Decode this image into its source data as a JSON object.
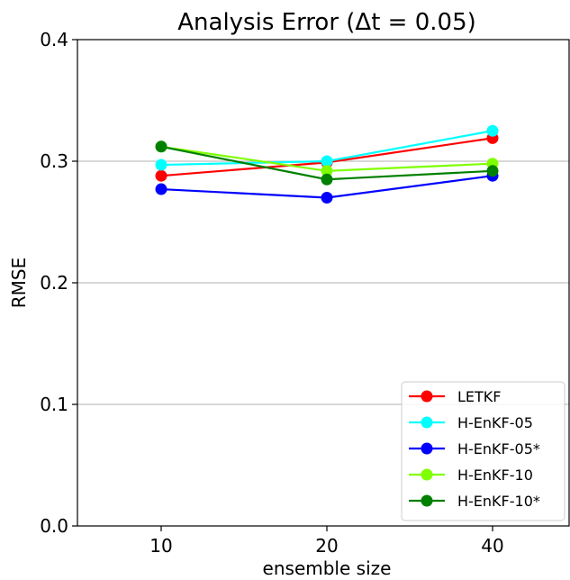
{
  "chart_data": {
    "type": "line",
    "title": "Analysis Error (Δt = 0.05)",
    "xlabel": "ensemble size",
    "ylabel": "RMSE",
    "categories": [
      "10",
      "20",
      "40"
    ],
    "ylim": [
      0.0,
      0.4
    ],
    "yticks": [
      "0.0",
      "0.1",
      "0.2",
      "0.3",
      "0.4"
    ],
    "grid": "horizontal",
    "legend_position": "lower-right",
    "series": [
      {
        "name": "LETKF",
        "color": "#ff0000",
        "values": [
          0.288,
          0.299,
          0.319
        ]
      },
      {
        "name": "H-EnKF-05",
        "color": "#00ffff",
        "values": [
          0.297,
          0.3,
          0.325
        ]
      },
      {
        "name": "H-EnKF-05*",
        "color": "#0000ff",
        "values": [
          0.277,
          0.27,
          0.288
        ]
      },
      {
        "name": "H-EnKF-10",
        "color": "#7fff00",
        "values": [
          0.312,
          0.292,
          0.298
        ]
      },
      {
        "name": "H-EnKF-10*",
        "color": "#008000",
        "values": [
          0.312,
          0.285,
          0.292
        ]
      }
    ]
  }
}
